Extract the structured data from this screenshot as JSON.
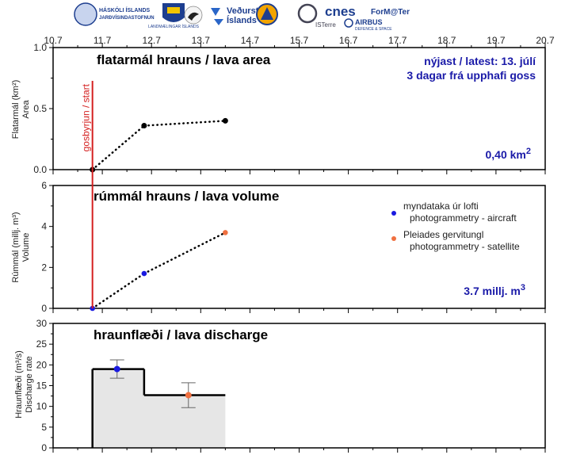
{
  "logos": {
    "hi": {
      "line1": "HÁSKÓLI ÍSLANDS",
      "line2": "JARÐVÍSINDASTOFNUN"
    },
    "lmi": "LANDMÆLINGAR ÍSLANDS",
    "vedur": {
      "line1": "Veðurstofa",
      "line2": "Íslands"
    },
    "isterre": "ISTerre",
    "cnes": "cnes",
    "airbus": {
      "line1": "AIRBUS",
      "line2": "DEFENCE & SPACE"
    },
    "formater": "ForM@Ter"
  },
  "colors": {
    "start_line": "#d42020",
    "aircraft": "#1a1ae0",
    "satellite": "#f07040",
    "annotation": "#1a1aa8",
    "fill": "#e6e6e6"
  },
  "x_axis": {
    "range": [
      10.7,
      20.7
    ],
    "ticks": [
      "10.7",
      "11.7",
      "12.7",
      "13.7",
      "14.7",
      "15.7",
      "16.7",
      "17.7",
      "18.7",
      "19.7",
      "20.7"
    ]
  },
  "start_label": "gosbyrjun / start",
  "start_x": 11.5,
  "chart_data": [
    {
      "type": "line",
      "title": "flatarmál hrauns / lava area",
      "ylabel": {
        "line1": "Flatarmál (km²)",
        "line2": "Area"
      },
      "ylim": [
        0,
        1.0
      ],
      "yticks": [
        "0.0",
        "0.5",
        "1.0"
      ],
      "points": [
        {
          "x": 11.5,
          "y": 0
        },
        {
          "x": 12.55,
          "y": 0.36
        },
        {
          "x": 14.2,
          "y": 0.4
        }
      ],
      "annotations": {
        "latest": "nýjast / latest: 13. júlí",
        "days": "3 dagar frá upphafi goss",
        "value": "0,40 km",
        "value_sup": "2"
      }
    },
    {
      "type": "scatter",
      "title": "rúmmál hrauns / lava volume",
      "ylabel": {
        "line1": "Rúmmál (millj. m³)",
        "line2": "Volume"
      },
      "ylim": [
        0,
        6
      ],
      "yticks": [
        "0",
        "2",
        "4",
        "6"
      ],
      "points": [
        {
          "x": 11.5,
          "y": 0,
          "source": "aircraft"
        },
        {
          "x": 12.55,
          "y": 1.7,
          "source": "aircraft"
        },
        {
          "x": 14.2,
          "y": 3.7,
          "source": "satellite"
        }
      ],
      "legend": [
        {
          "source": "aircraft",
          "line1": "myndataka úr lofti",
          "line2": "photogrammetry - aircraft"
        },
        {
          "source": "satellite",
          "line1": "Pleiades gervitungl",
          "line2": "photogrammetry - satellite"
        }
      ],
      "annotations": {
        "value": "3.7 millj. m",
        "value_sup": "3"
      }
    },
    {
      "type": "bar",
      "title": "hraunflæði / lava discharge",
      "ylabel": {
        "line1": "Hraunflæði (m³/s)",
        "line2": "Discharge rate"
      },
      "ylim": [
        0,
        30
      ],
      "yticks": [
        "0",
        "5",
        "10",
        "15",
        "20",
        "25",
        "30"
      ],
      "steps": [
        {
          "x0": 11.5,
          "x1": 12.55,
          "y": 19
        },
        {
          "x0": 12.55,
          "x1": 14.2,
          "y": 12.7
        }
      ],
      "points": [
        {
          "x": 12.0,
          "y": 19,
          "err": 2.2,
          "source": "aircraft"
        },
        {
          "x": 13.45,
          "y": 12.7,
          "err": 3.0,
          "source": "satellite"
        }
      ]
    }
  ]
}
